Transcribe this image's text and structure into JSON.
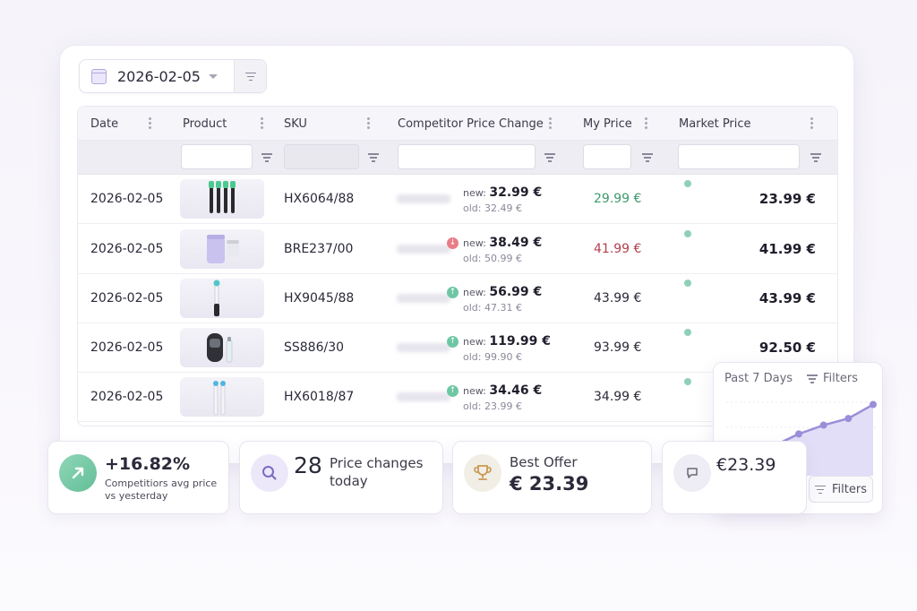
{
  "date_picker": {
    "value": "2026-02-05"
  },
  "table": {
    "columns": [
      "Date",
      "Product",
      "SKU",
      "Competitor Price Change",
      "My Price",
      "Market Price"
    ],
    "rows": [
      {
        "date": "2026-02-05",
        "sku": "HX6064/88",
        "trend": "",
        "new_label": "new:",
        "new_price": "32.99 €",
        "old_label": "old:",
        "old_price": "32.49 €",
        "my_price": "29.99 €",
        "my_price_color": "#3e9a6e",
        "market_price": "23.99 €"
      },
      {
        "date": "2026-02-05",
        "sku": "BRE237/00",
        "trend": "down",
        "new_label": "new:",
        "new_price": "38.49 €",
        "old_label": "old:",
        "old_price": "50.99 €",
        "my_price": "41.99 €",
        "my_price_color": "#b2414e",
        "market_price": "41.99 €"
      },
      {
        "date": "2026-02-05",
        "sku": "HX9045/88",
        "trend": "up",
        "new_label": "new:",
        "new_price": "56.99 €",
        "old_label": "old:",
        "old_price": "47.31 €",
        "my_price": "43.99 €",
        "my_price_color": "#2a2a3a",
        "market_price": "43.99 €"
      },
      {
        "date": "2026-02-05",
        "sku": "SS886/30",
        "trend": "up",
        "new_label": "new:",
        "new_price": "119.99 €",
        "old_label": "old:",
        "old_price": "99.90 €",
        "my_price": "93.99 €",
        "my_price_color": "#2a2a3a",
        "market_price": "92.50 €"
      },
      {
        "date": "2026-02-05",
        "sku": "HX6018/87",
        "trend": "up",
        "new_label": "new:",
        "new_price": "34.46 €",
        "old_label": "old:",
        "old_price": "23.99 €",
        "my_price": "34.99 €",
        "my_price_color": "#2a2a3a",
        "market_price": ""
      }
    ]
  },
  "cards": {
    "growth": {
      "value": "+16.82%",
      "caption_line1": "Competitiors avg price",
      "caption_line2": "vs yesterday",
      "icon": "arrow-up-right-icon"
    },
    "changes": {
      "count": "28",
      "label_line1": "Price changes",
      "label_line2": "today",
      "icon": "search-icon"
    },
    "best_offer": {
      "label": "Best Offer",
      "value": "€ 23.39",
      "icon": "trophy-icon"
    },
    "chat": {
      "value": "€23.39",
      "icon": "chat-icon"
    }
  },
  "mini_chart": {
    "period": "Past 7 Days",
    "filters_label": "Filters",
    "filters_button": "Filters"
  },
  "chart_data": {
    "type": "area",
    "title": "Past 7 Days",
    "values": [
      0.1,
      0.22,
      0.36,
      0.52,
      0.64,
      0.73,
      0.92
    ],
    "color": "#9a8ed8"
  },
  "colors": {
    "accent": "#9a8ed8",
    "up": "#6ec7a4",
    "down": "#e87d86"
  }
}
